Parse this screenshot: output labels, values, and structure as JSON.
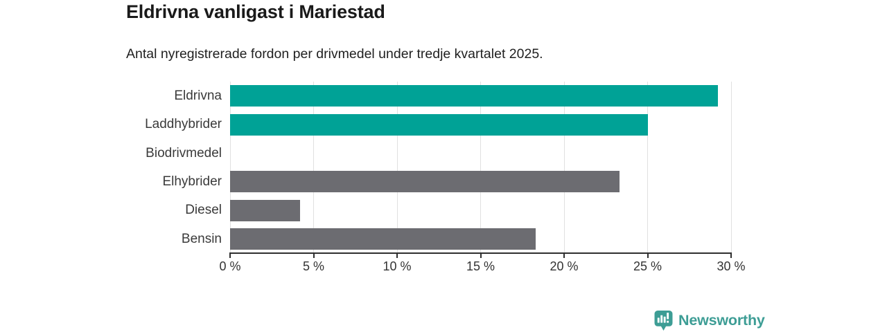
{
  "page": {
    "background": "#ffffff"
  },
  "chart_data": {
    "type": "bar",
    "orientation": "horizontal",
    "title": "Eldrivna vanligast i Mariestad",
    "subtitle": "Antal nyregistrerade fordon per drivmedel under tredje kvartalet 2025.",
    "categories": [
      "Eldrivna",
      "Laddhybrider",
      "Biodrivmedel",
      "Elhybrider",
      "Diesel",
      "Bensin"
    ],
    "values": [
      29.2,
      25,
      0,
      23.3,
      4.2,
      18.3
    ],
    "unit": "%",
    "series_colors": [
      "#00a296",
      "#00a296",
      "#00a296",
      "#6c6c71",
      "#6c6c71",
      "#6c6c71"
    ],
    "xlabel": "",
    "ylabel": "",
    "xlim": [
      0,
      30
    ],
    "x_ticks": [
      0,
      5,
      10,
      15,
      20,
      25,
      30
    ],
    "x_tick_labels": [
      "0 %",
      "5 %",
      "10 %",
      "15 %",
      "20 %",
      "25 %",
      "30 %"
    ],
    "grid": "vertical-gridlines-at-ticks",
    "legend": "none"
  },
  "colors": {
    "teal": "#00a296",
    "gray": "#6c6c71",
    "gridline": "#e0e0e0",
    "axis": "#2e2e2e",
    "tick_label": "#333333",
    "category_label": "#3a3a3a",
    "title": "#1a1a1a",
    "subtitle": "#1f1f1f",
    "logo": "#3d9d95",
    "background": "#ffffff"
  },
  "branding": {
    "logo_text": "Newsworthy",
    "logo_icon": "pin-with-bar-chart-and-exclamation"
  }
}
